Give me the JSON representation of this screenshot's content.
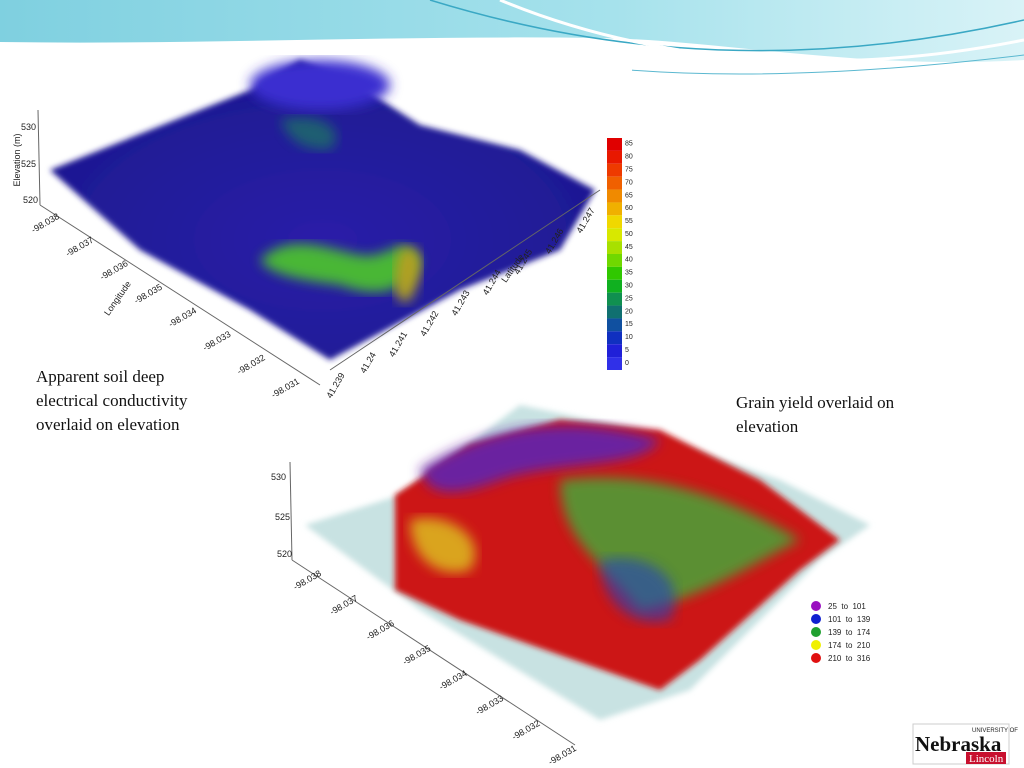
{
  "slide": {
    "figure_1": {
      "caption": [
        "Apparent soil deep",
        "electrical conductivity",
        "overlaid on elevation"
      ],
      "z_axis_label": "Elevation (m)",
      "z_ticks": [
        "530",
        "525",
        "520"
      ],
      "x_axis_label": "Longitude",
      "x_ticks": [
        "-98.038",
        "-98.037",
        "-98.036",
        "-98.035",
        "-98.034",
        "-98.033",
        "-98.032",
        "-98.031"
      ],
      "y_axis_label": "Latitude",
      "y_ticks": [
        "41.239",
        "41.24",
        "41.241",
        "41.242",
        "41.243",
        "41.244",
        "41.245",
        "41.246",
        "41.247"
      ],
      "colorbar_ticks": [
        "85",
        "80",
        "75",
        "70",
        "65",
        "60",
        "55",
        "50",
        "45",
        "40",
        "35",
        "30",
        "25",
        "20",
        "15",
        "10",
        "5",
        "0"
      ]
    },
    "figure_2": {
      "caption": [
        "Grain yield overlaid on",
        "elevation"
      ],
      "z_ticks": [
        "530",
        "525",
        "520"
      ],
      "x_ticks": [
        "-98.038",
        "-98.037",
        "-98.036",
        "-98.035",
        "-98.034",
        "-98.033",
        "-98.032",
        "-98.031"
      ],
      "legend": [
        "25  to  101",
        "101  to  139",
        "139  to  174",
        "174  to  210",
        "210  to  316"
      ]
    },
    "logo": {
      "small": "UNIVERSITY OF",
      "name": "Nebraska",
      "campus": "Lincoln"
    }
  }
}
